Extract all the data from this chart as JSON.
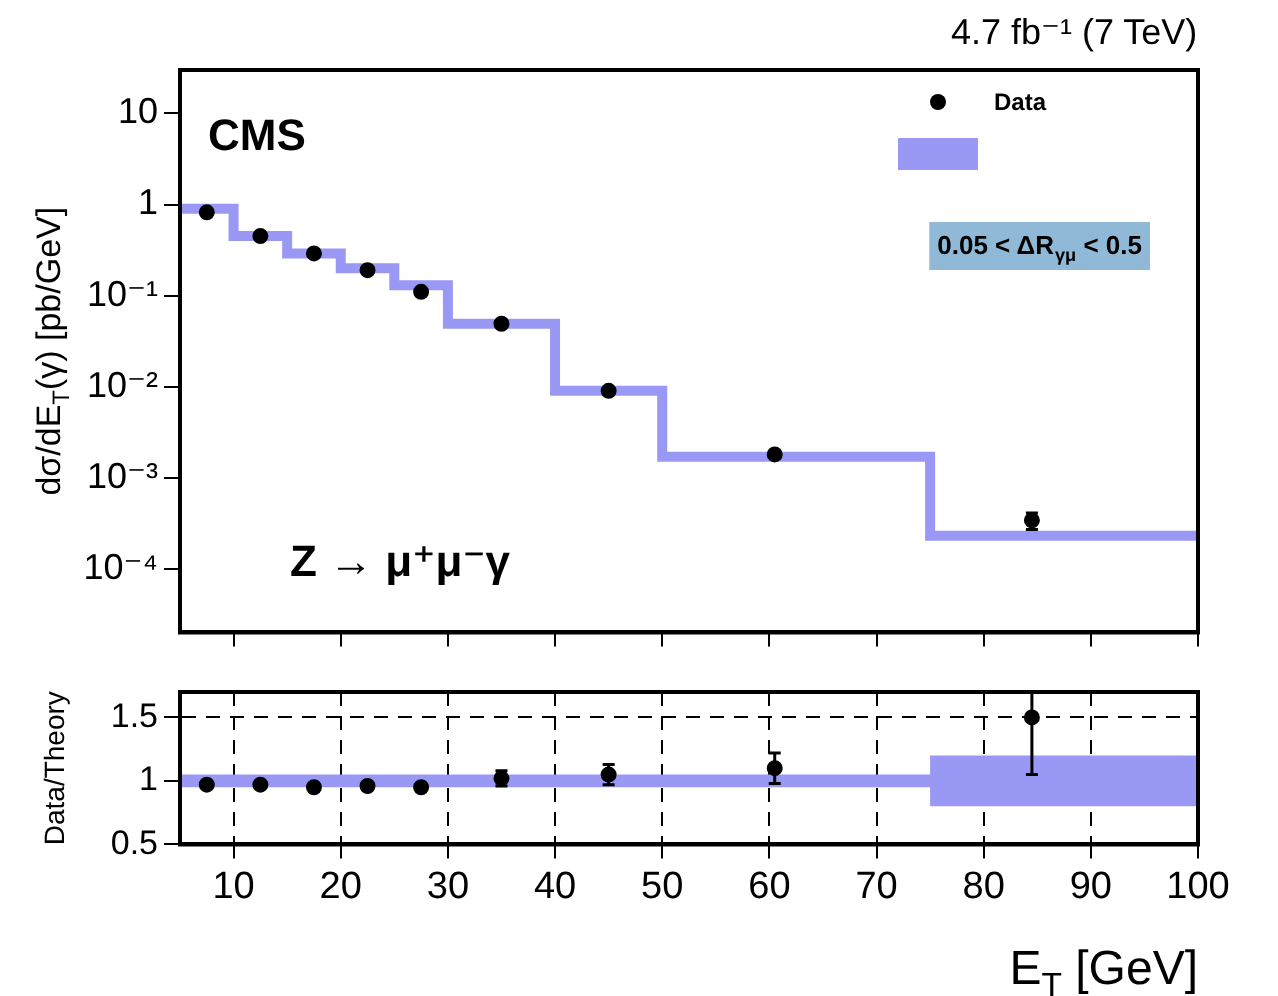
{
  "chart_data": [
    {
      "type": "scatter",
      "title": "4.7 fb⁻¹ (7 TeV)",
      "ylabel": "dσ/dE$_{T}$(γ) [pb/GeV]",
      "annotations": [
        "CMS",
        "Z → μ⁺μ⁻γ",
        "0.05 < ΔR$_{γμ}$ < 0.5"
      ],
      "log": "y",
      "legend": "top right",
      "tick_labels": "y",
      "grid": false,
      "xlim": [
        5,
        100
      ],
      "xticks": [
        10,
        20,
        30,
        40,
        50,
        60,
        70,
        80,
        90,
        100
      ],
      "ylim": [
        2e-05,
        30
      ],
      "yticks": [
        {
          "value": 0.0001,
          "label": "10⁻⁴"
        },
        {
          "value": 0.001,
          "label": "10⁻³"
        },
        {
          "value": 0.01,
          "label": "10⁻²"
        },
        {
          "value": 0.1,
          "label": "10⁻¹"
        },
        1,
        10
      ],
      "series": [
        {
          "type": "scatter",
          "name": "Data",
          "color": "#000000",
          "marker": "circle",
          "x": [
            7.5,
            12.5,
            17.5,
            22.5,
            27.5,
            35,
            45,
            60.5,
            84.5
          ],
          "values": [
            0.82,
            0.45,
            0.29,
            0.19,
            0.11,
            0.049,
            0.009,
            0.0018,
            0.00034
          ],
          "errors": [
            null,
            null,
            null,
            null,
            null,
            null,
            null,
            null,
            7e-05
          ]
        },
        {
          "type": "step",
          "color": "#9999f5",
          "x": [
            5,
            10,
            15,
            20,
            25,
            30,
            40,
            50,
            75,
            100
          ],
          "values": [
            0.9,
            0.45,
            0.29,
            0.2,
            0.13,
            0.049,
            0.009,
            0.0017,
            0.00023,
            0.00023
          ]
        }
      ]
    },
    {
      "type": "scatter",
      "xlabel": "E$_{T}$ [GeV]",
      "ylabel": "Data/Theory",
      "grid": true,
      "xlim": [
        5,
        100
      ],
      "xticks": [
        10,
        20,
        30,
        40,
        50,
        60,
        70,
        80,
        90,
        100
      ],
      "ylim": [
        0.5,
        1.7
      ],
      "yticks": [
        0.5,
        1,
        1.5
      ],
      "series": [
        {
          "type": "scatter",
          "color": "#000000",
          "marker": "circle",
          "x": [
            7.5,
            12.5,
            17.5,
            22.5,
            27.5,
            35,
            45,
            60.5,
            84.5
          ],
          "values": [
            0.97,
            0.97,
            0.95,
            0.96,
            0.95,
            1.02,
            1.05,
            1.1,
            1.5
          ],
          "errors": [
            null,
            null,
            null,
            null,
            null,
            0.06,
            0.08,
            0.12,
            [
              1.05,
              1.7
            ]
          ]
        },
        {
          "type": "step",
          "color": "#9999f5",
          "x": [
            5,
            75,
            100
          ],
          "values": [
            1,
            1,
            1
          ],
          "lower": [
            0.95,
            0.8,
            0.8
          ],
          "upper": [
            1.05,
            1.2,
            1.2
          ]
        }
      ]
    }
  ]
}
